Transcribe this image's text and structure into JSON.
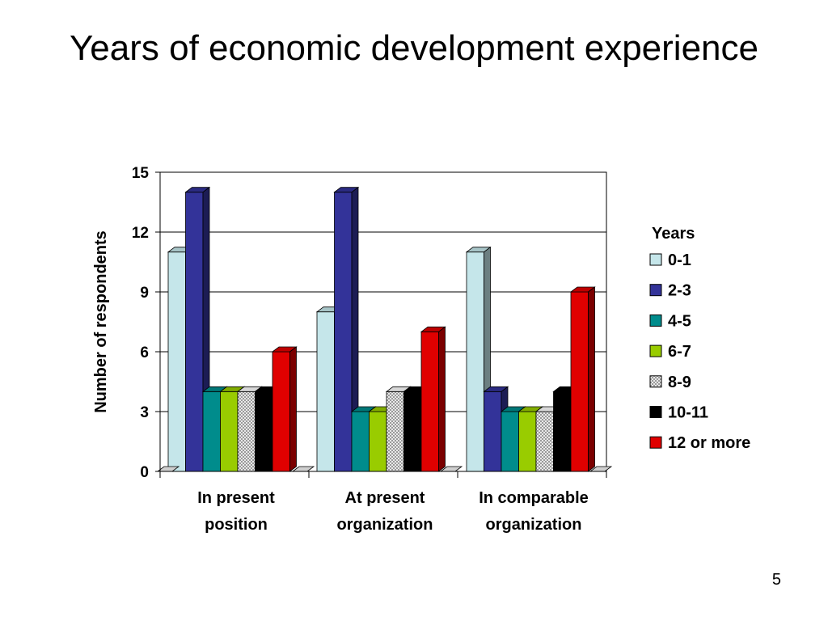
{
  "slide": {
    "title": "Years of economic development experience",
    "number": "5"
  },
  "chart_data": {
    "type": "bar",
    "title": "",
    "ylabel": "Number of respondents",
    "xlabel": "",
    "ylim": [
      0,
      15
    ],
    "yticks": [
      0,
      3,
      6,
      9,
      12,
      15
    ],
    "grid": true,
    "legend_title": "Years",
    "legend_position": "right",
    "categories": [
      [
        "In present",
        "position"
      ],
      [
        "At present",
        "organization"
      ],
      [
        "In comparable",
        "organization"
      ]
    ],
    "series": [
      {
        "name": "0-1",
        "color": "#c5e6ea",
        "values": [
          11,
          8,
          11
        ]
      },
      {
        "name": "2-3",
        "color": "#333399",
        "values": [
          14,
          14,
          4
        ]
      },
      {
        "name": "4-5",
        "color": "#008c8c",
        "values": [
          4,
          3,
          3
        ]
      },
      {
        "name": "6-7",
        "color": "#99cc00",
        "values": [
          4,
          3,
          3
        ]
      },
      {
        "name": "8-9",
        "color": "#c8c8c8",
        "pattern": "checker",
        "values": [
          4,
          4,
          3
        ]
      },
      {
        "name": "10-11",
        "color": "#000000",
        "values": [
          4,
          4,
          4
        ]
      },
      {
        "name": "12 or more",
        "color": "#e00000",
        "values": [
          6,
          7,
          9
        ]
      }
    ]
  }
}
